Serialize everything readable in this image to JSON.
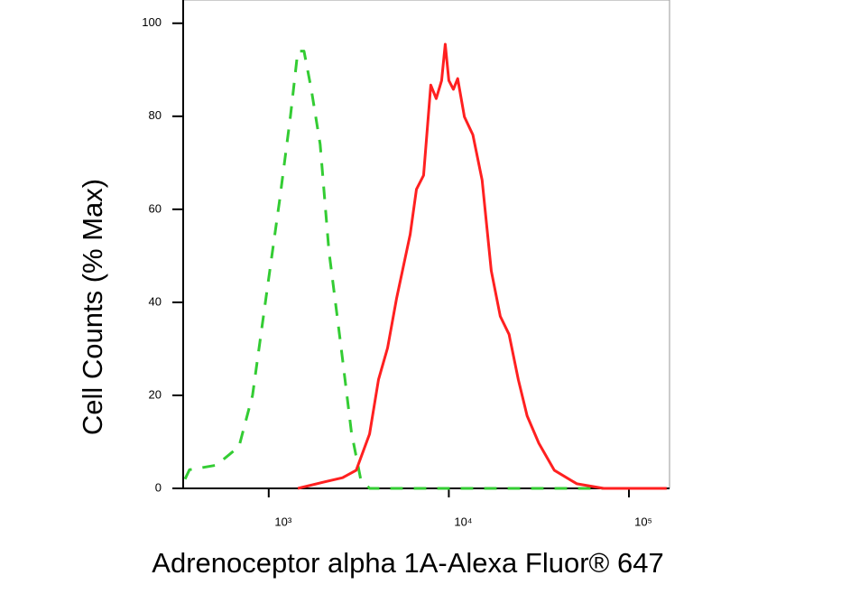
{
  "chart_data": {
    "type": "line",
    "xlabel": "Adrenoceptor alpha 1A-Alexa Fluor® 647",
    "ylabel": "Cell Counts (% Max)",
    "xscale": "log",
    "xlim": [
      335,
      168000
    ],
    "ylim": [
      0,
      105
    ],
    "xticks": [
      {
        "value": 1000,
        "label": "10³"
      },
      {
        "value": 10000,
        "label": "10⁴"
      },
      {
        "value": 100000,
        "label": "10⁵"
      }
    ],
    "yticks": [
      0,
      20,
      40,
      60,
      80,
      100
    ],
    "series": [
      {
        "color": "#33cc33",
        "linestyle": "dashed",
        "x": [
          343,
          363,
          513,
          684,
          813,
          966,
          1150,
          1320,
          1450,
          1570,
          1720,
          1930,
          2160,
          2510,
          2880,
          3240,
          3630,
          10000,
          100000,
          162000
        ],
        "values": [
          2,
          4,
          5,
          9,
          20,
          41,
          62,
          80,
          94,
          94,
          86,
          74,
          51,
          31,
          12,
          2,
          0,
          0,
          0,
          0
        ]
      },
      {
        "color": "#ff2020",
        "linestyle": "solid",
        "x": [
          1450,
          2040,
          2570,
          3060,
          3630,
          4070,
          4570,
          5130,
          6100,
          6610,
          7240,
          7940,
          8510,
          9120,
          9550,
          10000,
          10600,
          11200,
          12200,
          13600,
          15300,
          17200,
          19300,
          21600,
          24300,
          27200,
          31600,
          38500,
          51300,
          72400,
          162000
        ],
        "values": [
          0,
          1.4,
          2.3,
          3.9,
          11.7,
          23.4,
          30.2,
          40.9,
          54.6,
          64.3,
          67.3,
          86.7,
          83.8,
          87.7,
          95.5,
          87.7,
          85.8,
          88.1,
          79.9,
          76,
          66.3,
          46.8,
          37,
          33.1,
          23.4,
          15.6,
          9.7,
          3.9,
          1,
          0,
          0
        ]
      }
    ]
  }
}
